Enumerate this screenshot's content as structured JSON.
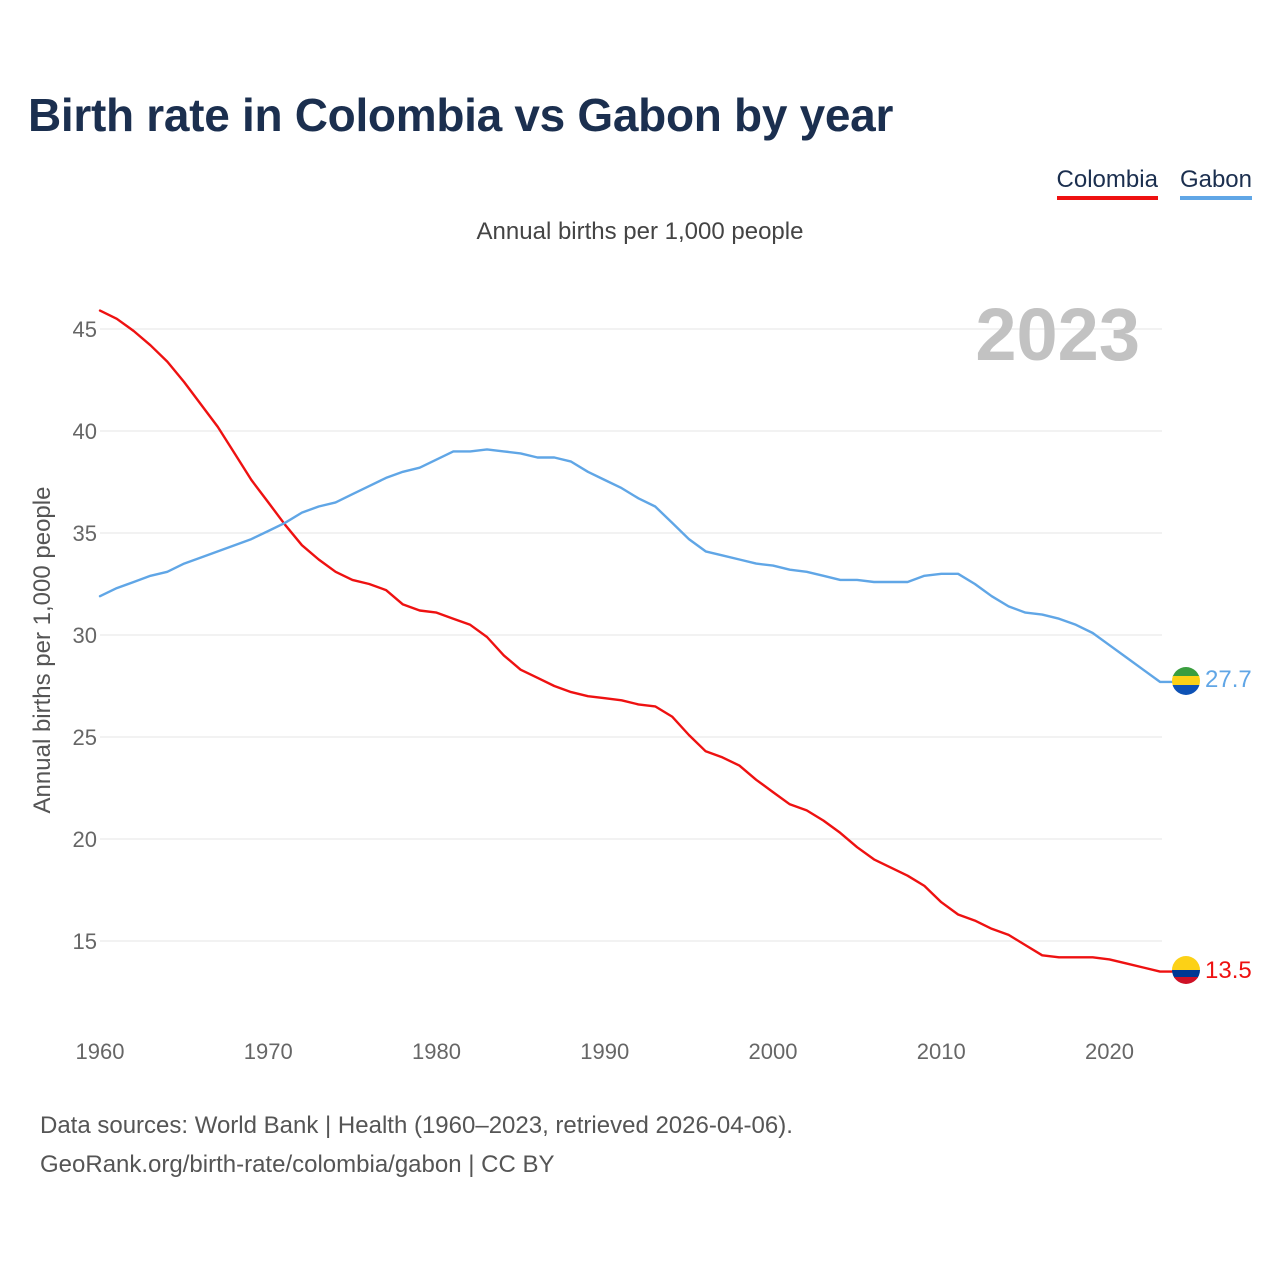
{
  "title": "Birth rate in Colombia vs Gabon by year",
  "subtitle": "Annual births per 1,000 people",
  "legend": [
    "Colombia",
    "Gabon"
  ],
  "year_label": "2023",
  "footer": {
    "line1": "Data sources: World Bank | Health (1960–2023, retrieved 2026-04-06).",
    "line2": "GeoRank.org/birth-rate/colombia/gabon | CC BY"
  },
  "colors": {
    "colombia": "#ee1111",
    "gabon": "#60a6e6",
    "title": "#1b2f4f"
  },
  "chart_data": {
    "type": "line",
    "title": "Birth rate in Colombia vs Gabon by year",
    "subtitle": "Annual births per 1,000 people",
    "xlabel": "",
    "ylabel": "Annual births per 1,000 people",
    "xlim": [
      1960,
      2023
    ],
    "ylim": [
      12,
      46
    ],
    "grid": true,
    "legend_position": "top-right",
    "xticks": [
      1960,
      1970,
      1980,
      1990,
      2000,
      2010,
      2020
    ],
    "yticks": [
      15,
      20,
      25,
      30,
      35,
      40,
      45
    ],
    "x": [
      1960,
      1961,
      1962,
      1963,
      1964,
      1965,
      1966,
      1967,
      1968,
      1969,
      1970,
      1971,
      1972,
      1973,
      1974,
      1975,
      1976,
      1977,
      1978,
      1979,
      1980,
      1981,
      1982,
      1983,
      1984,
      1985,
      1986,
      1987,
      1988,
      1989,
      1990,
      1991,
      1992,
      1993,
      1994,
      1995,
      1996,
      1997,
      1998,
      1999,
      2000,
      2001,
      2002,
      2003,
      2004,
      2005,
      2006,
      2007,
      2008,
      2009,
      2010,
      2011,
      2012,
      2013,
      2014,
      2015,
      2016,
      2017,
      2018,
      2019,
      2020,
      2021,
      2022,
      2023
    ],
    "series": [
      {
        "name": "Colombia",
        "color": "#ee1111",
        "end_label": "13.5",
        "values": [
          45.9,
          45.5,
          44.9,
          44.2,
          43.4,
          42.4,
          41.3,
          40.2,
          38.9,
          37.6,
          36.5,
          35.4,
          34.4,
          33.7,
          33.1,
          32.7,
          32.5,
          32.2,
          31.5,
          31.2,
          31.1,
          30.8,
          30.5,
          29.9,
          29.0,
          28.3,
          27.9,
          27.5,
          27.2,
          27.0,
          26.9,
          26.8,
          26.6,
          26.5,
          26.0,
          25.1,
          24.3,
          24.0,
          23.6,
          22.9,
          22.3,
          21.7,
          21.4,
          20.9,
          20.3,
          19.6,
          19.0,
          18.6,
          18.2,
          17.7,
          16.9,
          16.3,
          16.0,
          15.6,
          15.3,
          14.8,
          14.3,
          14.2,
          14.2,
          14.2,
          14.1,
          13.9,
          13.7,
          13.5
        ]
      },
      {
        "name": "Gabon",
        "color": "#60a6e6",
        "end_label": "27.7",
        "values": [
          31.9,
          32.3,
          32.6,
          32.9,
          33.1,
          33.5,
          33.8,
          34.1,
          34.4,
          34.7,
          35.1,
          35.5,
          36.0,
          36.3,
          36.5,
          36.9,
          37.3,
          37.7,
          38.0,
          38.2,
          38.6,
          39.0,
          39.0,
          39.1,
          39.0,
          38.9,
          38.7,
          38.7,
          38.5,
          38.0,
          37.6,
          37.2,
          36.7,
          36.3,
          35.5,
          34.7,
          34.1,
          33.9,
          33.7,
          33.5,
          33.4,
          33.2,
          33.1,
          32.9,
          32.7,
          32.7,
          32.6,
          32.6,
          32.6,
          32.9,
          33.0,
          33.0,
          32.5,
          31.9,
          31.4,
          31.1,
          31.0,
          30.8,
          30.5,
          30.1,
          29.5,
          28.9,
          28.3,
          27.7
        ]
      }
    ]
  }
}
